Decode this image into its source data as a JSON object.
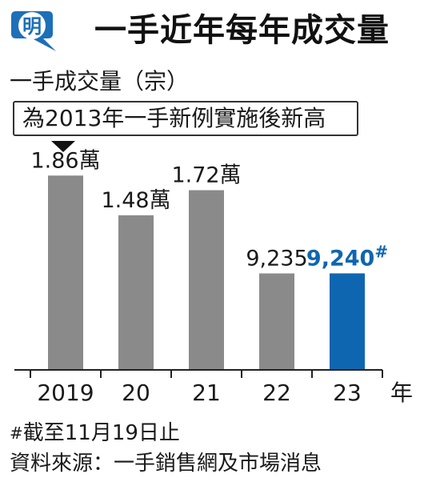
{
  "header": {
    "logo_char": "明",
    "title": "一手近年每年成交量"
  },
  "subtitle": "一手成交量（宗）",
  "callout": "為2013年一手新例實施後新高",
  "footnote": {
    "mark": "#",
    "text": "截至11月19日止"
  },
  "source": "資料來源：一手銷售網及市場消息",
  "colors": {
    "gray_bar": "#8a8a8a",
    "highlight_bar": "#0f66b0",
    "highlight_label": "#0f66b0",
    "brand": "#1e6fb8"
  },
  "chart_data": {
    "type": "bar",
    "categories": [
      "2019",
      "20",
      "21",
      "22",
      "23"
    ],
    "values": [
      18600,
      14800,
      17200,
      9235,
      9240
    ],
    "value_labels": [
      "1.86萬",
      "1.48萬",
      "1.72萬",
      "9,235",
      "9,240"
    ],
    "value_label_suffix": [
      "",
      "",
      "",
      "",
      "#"
    ],
    "highlight_index": 4,
    "x_unit": "年",
    "ylim": [
      0,
      20000
    ]
  }
}
